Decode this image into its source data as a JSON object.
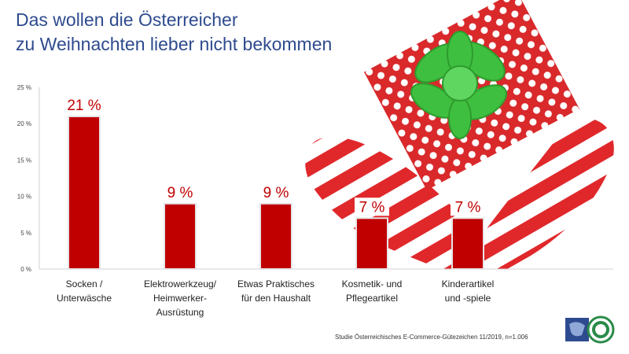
{
  "title_lines": [
    "Das wollen die Österreicher",
    "zu Weihnachten lieber nicht bekommen"
  ],
  "source": "Studie Österreichisches E-Commerce-Gütezeichen 11/2019, n=1.006",
  "colors": {
    "bar": "#c00000",
    "title": "#2e4b8f",
    "label": "#c00000"
  },
  "chart_data": {
    "type": "bar",
    "categories": [
      "Socken / Unterwäsche",
      "Elektrowerkzeug/ Heimwerker-Ausrüstung",
      "Etwas Praktisches für den Haushalt",
      "Kosmetik- und Pflegeartikel",
      "Kinderartikel und -spiele"
    ],
    "category_lines": [
      [
        "Socken /",
        "Unterwäsche"
      ],
      [
        "Elektrowerkzeug/",
        "Heimwerker-",
        "Ausrüstung"
      ],
      [
        "Etwas Praktisches",
        "für den Haushalt"
      ],
      [
        "Kosmetik- und",
        "Pflegeartikel"
      ],
      [
        "Kinderartikel",
        "und -spiele"
      ]
    ],
    "values": [
      21,
      9,
      9,
      7,
      7
    ],
    "value_labels": [
      "21 %",
      "9 %",
      "9 %",
      "7 %",
      "7 %"
    ],
    "yticks": [
      "0 %",
      "5 %",
      "10 %",
      "15 %",
      "20 %",
      "25 %"
    ],
    "ylim": [
      0,
      25
    ],
    "unit": "%"
  }
}
